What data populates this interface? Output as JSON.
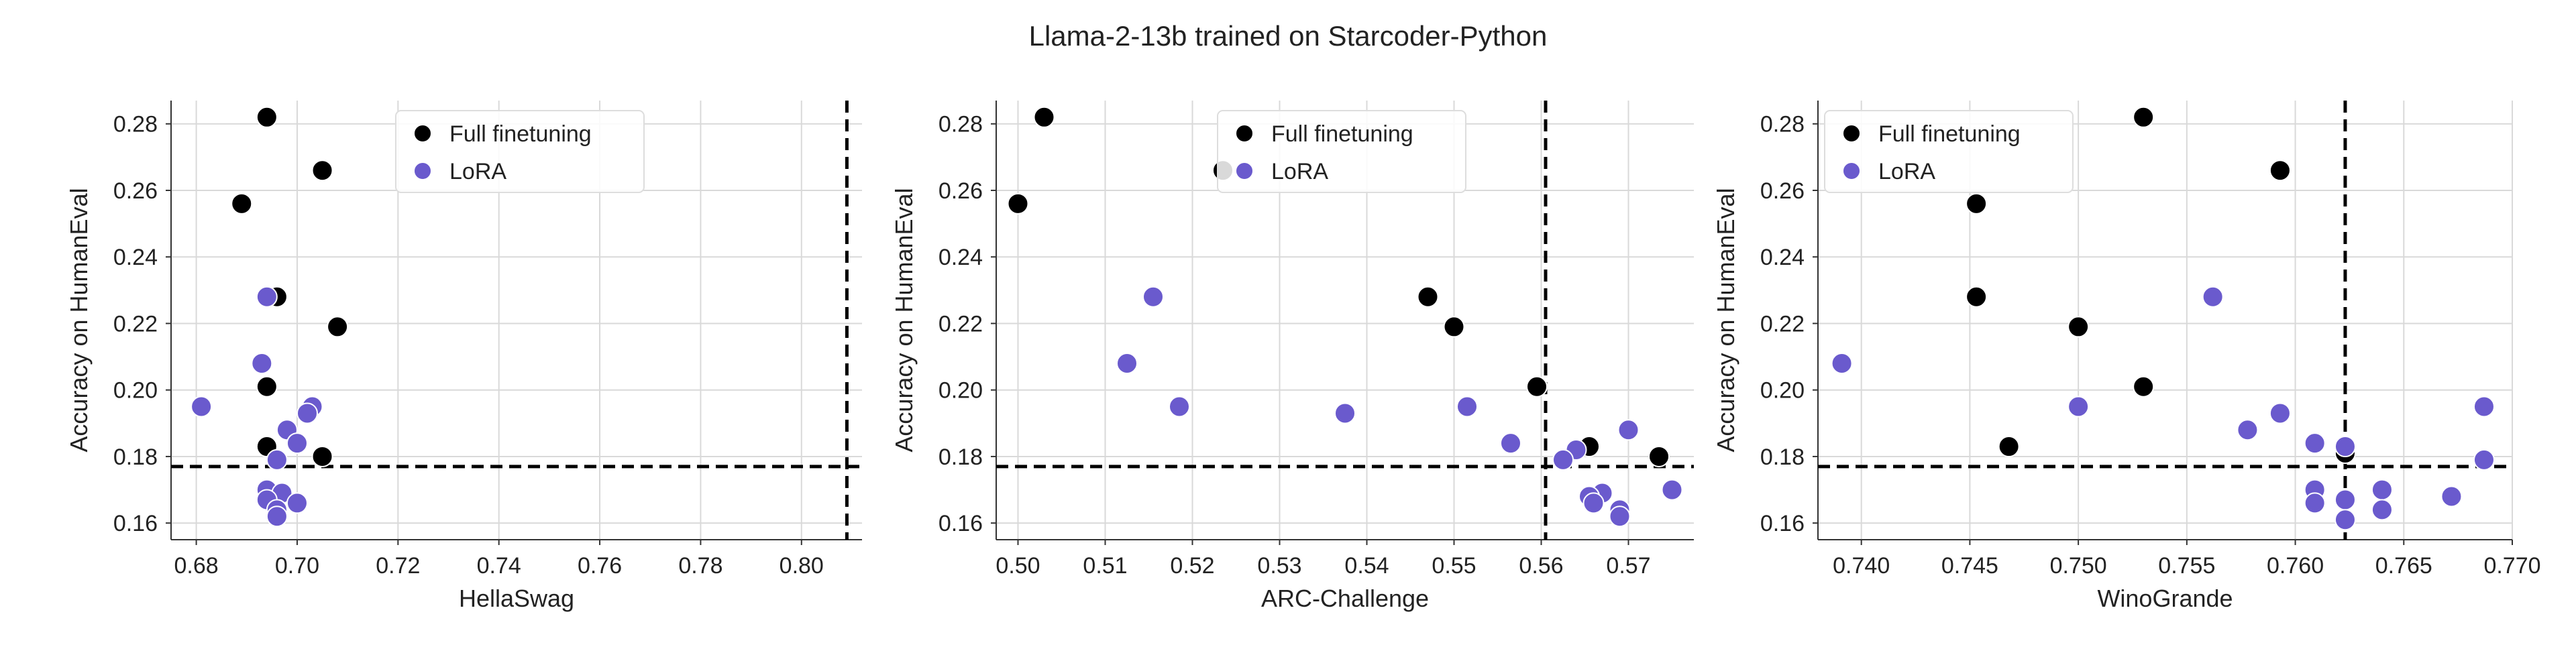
{
  "figure": {
    "title": "Llama-2-13b trained on Starcoder-Python"
  },
  "colors": {
    "full_finetuning": "#000000",
    "lora": "#6a5acd",
    "grid": "#d9d9d9",
    "reference_line": "#000000"
  },
  "chart_data": [
    {
      "type": "scatter",
      "title": "",
      "xlabel": "HellaSwag",
      "ylabel": "Accuracy on HumanEval",
      "xlim": [
        0.675,
        0.812
      ],
      "ylim": [
        0.155,
        0.287
      ],
      "xticks": [
        0.68,
        0.7,
        0.72,
        0.74,
        0.76,
        0.78,
        0.8
      ],
      "xtick_labels": [
        "0.68",
        "0.70",
        "0.72",
        "0.74",
        "0.76",
        "0.78",
        "0.80"
      ],
      "yticks": [
        0.16,
        0.18,
        0.2,
        0.22,
        0.24,
        0.26,
        0.28
      ],
      "ytick_labels": [
        "0.16",
        "0.18",
        "0.20",
        "0.22",
        "0.24",
        "0.26",
        "0.28"
      ],
      "grid": true,
      "legend": "top-center",
      "reference_lines": {
        "x": 0.809,
        "y": 0.177
      },
      "series": [
        {
          "name": "Full finetuning",
          "points": [
            [
              0.694,
              0.282
            ],
            [
              0.705,
              0.266
            ],
            [
              0.689,
              0.256
            ],
            [
              0.696,
              0.228
            ],
            [
              0.708,
              0.219
            ],
            [
              0.694,
              0.201
            ],
            [
              0.694,
              0.183
            ],
            [
              0.705,
              0.18
            ]
          ]
        },
        {
          "name": "LoRA",
          "points": [
            [
              0.694,
              0.228
            ],
            [
              0.693,
              0.208
            ],
            [
              0.681,
              0.195
            ],
            [
              0.703,
              0.195
            ],
            [
              0.702,
              0.193
            ],
            [
              0.698,
              0.188
            ],
            [
              0.7,
              0.184
            ],
            [
              0.696,
              0.179
            ],
            [
              0.694,
              0.17
            ],
            [
              0.697,
              0.169
            ],
            [
              0.694,
              0.167
            ],
            [
              0.7,
              0.166
            ],
            [
              0.696,
              0.164
            ],
            [
              0.696,
              0.162
            ]
          ]
        }
      ]
    },
    {
      "type": "scatter",
      "title": "",
      "xlabel": "ARC-Challenge",
      "ylabel": "Accuracy on HumanEval",
      "xlim": [
        0.4975,
        0.5775
      ],
      "ylim": [
        0.155,
        0.287
      ],
      "xticks": [
        0.5,
        0.51,
        0.52,
        0.53,
        0.54,
        0.55,
        0.56,
        0.57
      ],
      "xtick_labels": [
        "0.50",
        "0.51",
        "0.52",
        "0.53",
        "0.54",
        "0.55",
        "0.56",
        "0.57"
      ],
      "yticks": [
        0.16,
        0.18,
        0.2,
        0.22,
        0.24,
        0.26,
        0.28
      ],
      "ytick_labels": [
        "0.16",
        "0.18",
        "0.20",
        "0.22",
        "0.24",
        "0.26",
        "0.28"
      ],
      "grid": true,
      "legend": "top-center",
      "reference_lines": {
        "x": 0.5605,
        "y": 0.177
      },
      "series": [
        {
          "name": "Full finetuning",
          "points": [
            [
              0.503,
              0.282
            ],
            [
              0.5235,
              0.266
            ],
            [
              0.5,
              0.256
            ],
            [
              0.547,
              0.228
            ],
            [
              0.55,
              0.219
            ],
            [
              0.5595,
              0.201
            ],
            [
              0.5655,
              0.183
            ],
            [
              0.5735,
              0.18
            ]
          ]
        },
        {
          "name": "LoRA",
          "points": [
            [
              0.5155,
              0.228
            ],
            [
              0.5125,
              0.208
            ],
            [
              0.5185,
              0.195
            ],
            [
              0.5515,
              0.195
            ],
            [
              0.5375,
              0.193
            ],
            [
              0.57,
              0.188
            ],
            [
              0.5565,
              0.184
            ],
            [
              0.564,
              0.182
            ],
            [
              0.5625,
              0.179
            ],
            [
              0.575,
              0.17
            ],
            [
              0.567,
              0.169
            ],
            [
              0.5655,
              0.168
            ],
            [
              0.566,
              0.166
            ],
            [
              0.569,
              0.164
            ],
            [
              0.569,
              0.162
            ]
          ]
        }
      ]
    },
    {
      "type": "scatter",
      "title": "",
      "xlabel": "WinoGrande",
      "ylabel": "Accuracy on HumanEval",
      "xlim": [
        0.738,
        0.77
      ],
      "ylim": [
        0.155,
        0.287
      ],
      "xticks": [
        0.74,
        0.745,
        0.75,
        0.755,
        0.76,
        0.765,
        0.77
      ],
      "xtick_labels": [
        "0.740",
        "0.745",
        "0.750",
        "0.755",
        "0.760",
        "0.765",
        "0.770"
      ],
      "yticks": [
        0.16,
        0.18,
        0.2,
        0.22,
        0.24,
        0.26,
        0.28
      ],
      "ytick_labels": [
        "0.16",
        "0.18",
        "0.20",
        "0.22",
        "0.24",
        "0.26",
        "0.28"
      ],
      "grid": true,
      "legend": "top-left",
      "reference_lines": {
        "x": 0.7623,
        "y": 0.177
      },
      "series": [
        {
          "name": "Full finetuning",
          "points": [
            [
              0.753,
              0.282
            ],
            [
              0.7593,
              0.266
            ],
            [
              0.7453,
              0.256
            ],
            [
              0.7453,
              0.228
            ],
            [
              0.75,
              0.219
            ],
            [
              0.753,
              0.201
            ],
            [
              0.7468,
              0.183
            ],
            [
              0.7623,
              0.181
            ]
          ]
        },
        {
          "name": "LoRA",
          "points": [
            [
              0.7562,
              0.228
            ],
            [
              0.7391,
              0.208
            ],
            [
              0.75,
              0.195
            ],
            [
              0.7687,
              0.195
            ],
            [
              0.7593,
              0.193
            ],
            [
              0.7578,
              0.188
            ],
            [
              0.7609,
              0.184
            ],
            [
              0.7623,
              0.183
            ],
            [
              0.7687,
              0.179
            ],
            [
              0.7609,
              0.17
            ],
            [
              0.764,
              0.17
            ],
            [
              0.7672,
              0.168
            ],
            [
              0.7623,
              0.167
            ],
            [
              0.7609,
              0.166
            ],
            [
              0.764,
              0.164
            ],
            [
              0.7623,
              0.161
            ]
          ]
        }
      ]
    }
  ]
}
